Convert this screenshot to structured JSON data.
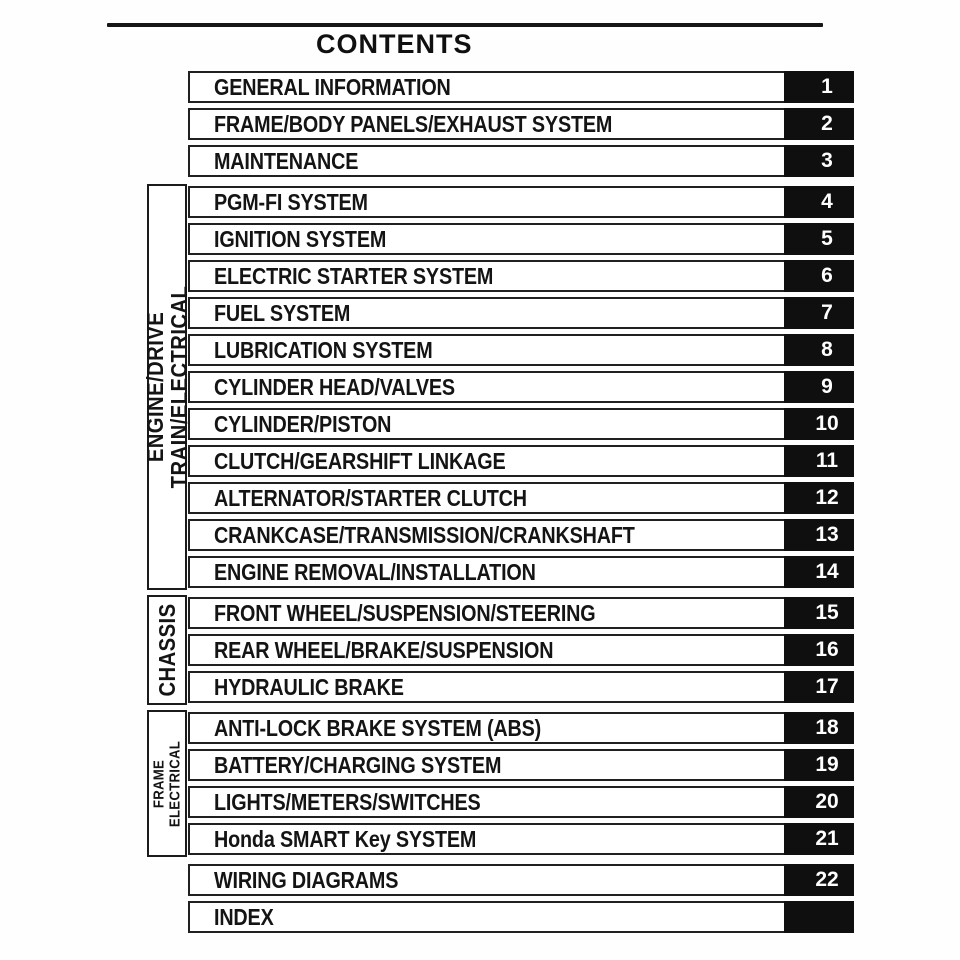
{
  "page": {
    "title": "CONTENTS"
  },
  "colors": {
    "text": "#141414",
    "border": "#202020",
    "badge_bg": "#0f0f0f",
    "badge_text": "#ffffff",
    "background": "#ffffff"
  },
  "groups": [
    {
      "label": "",
      "items": [
        {
          "title": "GENERAL INFORMATION",
          "number": "1"
        },
        {
          "title": "FRAME/BODY PANELS/EXHAUST SYSTEM",
          "number": "2"
        },
        {
          "title": "MAINTENANCE",
          "number": "3"
        }
      ]
    },
    {
      "label": "ENGINE/DRIVE TRAIN/ELECTRICAL",
      "items": [
        {
          "title": "PGM-FI SYSTEM",
          "number": "4"
        },
        {
          "title": "IGNITION SYSTEM",
          "number": "5"
        },
        {
          "title": "ELECTRIC STARTER SYSTEM",
          "number": "6"
        },
        {
          "title": "FUEL SYSTEM",
          "number": "7"
        },
        {
          "title": "LUBRICATION SYSTEM",
          "number": "8"
        },
        {
          "title": "CYLINDER HEAD/VALVES",
          "number": "9"
        },
        {
          "title": "CYLINDER/PISTON",
          "number": "10"
        },
        {
          "title": "CLUTCH/GEARSHIFT LINKAGE",
          "number": "11"
        },
        {
          "title": "ALTERNATOR/STARTER CLUTCH",
          "number": "12"
        },
        {
          "title": "CRANKCASE/TRANSMISSION/CRANKSHAFT",
          "number": "13"
        },
        {
          "title": "ENGINE REMOVAL/INSTALLATION",
          "number": "14"
        }
      ]
    },
    {
      "label": "CHASSIS",
      "items": [
        {
          "title": "FRONT WHEEL/SUSPENSION/STEERING",
          "number": "15"
        },
        {
          "title": "REAR WHEEL/BRAKE/SUSPENSION",
          "number": "16"
        },
        {
          "title": "HYDRAULIC BRAKE",
          "number": "17"
        }
      ]
    },
    {
      "label": "FRAME\nELECTRICAL",
      "items": [
        {
          "title": "ANTI-LOCK BRAKE SYSTEM (ABS)",
          "number": "18"
        },
        {
          "title": "BATTERY/CHARGING SYSTEM",
          "number": "19"
        },
        {
          "title": "LIGHTS/METERS/SWITCHES",
          "number": "20"
        },
        {
          "title": "Honda SMART Key SYSTEM",
          "number": "21"
        }
      ]
    },
    {
      "label": "",
      "items": [
        {
          "title": "WIRING DIAGRAMS",
          "number": "22"
        },
        {
          "title": "INDEX",
          "number": ""
        }
      ]
    }
  ]
}
